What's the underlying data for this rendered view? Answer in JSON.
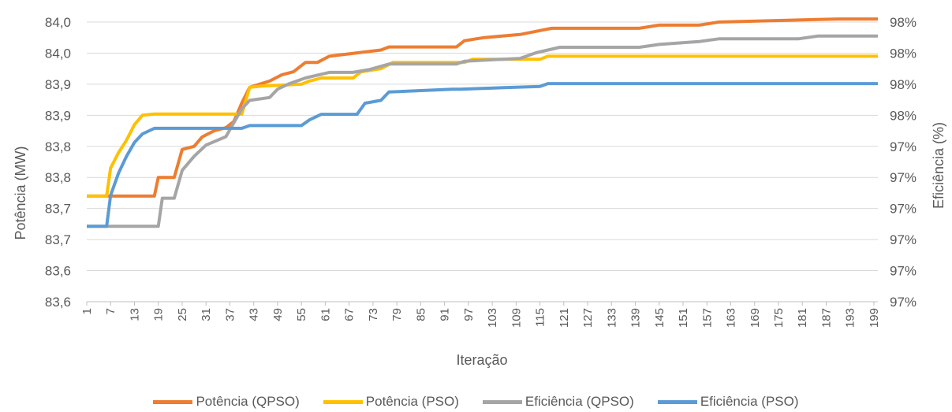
{
  "chart_data": {
    "type": "line",
    "title": "",
    "xlabel": "Iteração",
    "ylabel_left": "Potência (MW)",
    "ylabel_right": "Eficiência (%)",
    "x_tick_labels": [
      "1",
      "7",
      "13",
      "19",
      "25",
      "31",
      "37",
      "43",
      "49",
      "55",
      "61",
      "67",
      "73",
      "79",
      "85",
      "91",
      "97",
      "103",
      "109",
      "115",
      "121",
      "127",
      "133",
      "139",
      "145",
      "151",
      "157",
      "163",
      "169",
      "175",
      "181",
      "187",
      "193",
      "199"
    ],
    "y_left_tick_labels": [
      "84,0",
      "84,0",
      "83,9",
      "83,9",
      "83,8",
      "83,8",
      "83,7",
      "83,7",
      "83,6",
      "83,6"
    ],
    "y_right_tick_labels": [
      "98%",
      "98%",
      "98%",
      "98%",
      "97%",
      "97%",
      "97%",
      "97%",
      "97%",
      "97%"
    ],
    "y_left_lim": [
      83.55,
      84.0
    ],
    "y_right_lim": [
      97.0,
      98.0
    ],
    "grid": true,
    "legend_position": "bottom",
    "series": [
      {
        "name": "Potência (QPSO)",
        "color": "#ED7D31",
        "axis": "left",
        "points": [
          [
            1,
            83.72
          ],
          [
            18,
            83.72
          ],
          [
            19,
            83.75
          ],
          [
            23,
            83.75
          ],
          [
            25,
            83.795
          ],
          [
            28,
            83.8
          ],
          [
            30,
            83.815
          ],
          [
            33,
            83.825
          ],
          [
            36,
            83.83
          ],
          [
            38,
            83.84
          ],
          [
            40,
            83.87
          ],
          [
            42,
            83.895
          ],
          [
            47,
            83.905
          ],
          [
            50,
            83.915
          ],
          [
            53,
            83.92
          ],
          [
            56,
            83.935
          ],
          [
            59,
            83.935
          ],
          [
            62,
            83.945
          ],
          [
            75,
            83.955
          ],
          [
            77,
            83.96
          ],
          [
            94,
            83.96
          ],
          [
            96,
            83.97
          ],
          [
            101,
            83.975
          ],
          [
            110,
            83.98
          ],
          [
            114,
            83.985
          ],
          [
            118,
            83.99
          ],
          [
            140,
            83.99
          ],
          [
            145,
            83.995
          ],
          [
            155,
            83.995
          ],
          [
            160,
            84.0
          ],
          [
            190,
            84.005
          ],
          [
            200,
            84.005
          ]
        ]
      },
      {
        "name": "Potência (PSO)",
        "color": "#FFC000",
        "axis": "left",
        "points": [
          [
            1,
            83.72
          ],
          [
            6,
            83.72
          ],
          [
            7,
            83.765
          ],
          [
            9,
            83.79
          ],
          [
            11,
            83.81
          ],
          [
            13,
            83.835
          ],
          [
            15,
            83.85
          ],
          [
            18,
            83.852
          ],
          [
            20,
            83.852
          ],
          [
            40,
            83.852
          ],
          [
            42,
            83.895
          ],
          [
            45,
            83.897
          ],
          [
            55,
            83.9
          ],
          [
            57,
            83.905
          ],
          [
            60,
            83.91
          ],
          [
            68,
            83.91
          ],
          [
            70,
            83.92
          ],
          [
            75,
            83.925
          ],
          [
            78,
            83.935
          ],
          [
            96,
            83.935
          ],
          [
            98,
            83.94
          ],
          [
            115,
            83.94
          ],
          [
            117,
            83.945
          ],
          [
            200,
            83.945
          ]
        ]
      },
      {
        "name": "Eficiência (QPSO)",
        "color": "#A5A5A5",
        "axis": "right",
        "points": [
          [
            1,
            97.27
          ],
          [
            19,
            97.27
          ],
          [
            20,
            97.37
          ],
          [
            23,
            97.37
          ],
          [
            25,
            97.47
          ],
          [
            28,
            97.52
          ],
          [
            31,
            97.56
          ],
          [
            36,
            97.59
          ],
          [
            38,
            97.64
          ],
          [
            40,
            97.69
          ],
          [
            42,
            97.72
          ],
          [
            47,
            97.73
          ],
          [
            49,
            97.76
          ],
          [
            52,
            97.78
          ],
          [
            56,
            97.8
          ],
          [
            59,
            97.81
          ],
          [
            62,
            97.82
          ],
          [
            68,
            97.82
          ],
          [
            72,
            97.83
          ],
          [
            77,
            97.85
          ],
          [
            94,
            97.85
          ],
          [
            96,
            97.86
          ],
          [
            110,
            97.87
          ],
          [
            114,
            97.89
          ],
          [
            120,
            97.91
          ],
          [
            140,
            97.91
          ],
          [
            145,
            97.92
          ],
          [
            155,
            97.93
          ],
          [
            160,
            97.94
          ],
          [
            180,
            97.94
          ],
          [
            185,
            97.95
          ],
          [
            200,
            97.95
          ]
        ]
      },
      {
        "name": "Eficiência (PSO)",
        "color": "#5B9BD5",
        "axis": "right",
        "points": [
          [
            1,
            97.27
          ],
          [
            6,
            97.27
          ],
          [
            7,
            97.38
          ],
          [
            9,
            97.46
          ],
          [
            11,
            97.52
          ],
          [
            13,
            97.57
          ],
          [
            15,
            97.6
          ],
          [
            18,
            97.62
          ],
          [
            20,
            97.62
          ],
          [
            40,
            97.62
          ],
          [
            42,
            97.63
          ],
          [
            55,
            97.63
          ],
          [
            57,
            97.65
          ],
          [
            60,
            97.67
          ],
          [
            69,
            97.67
          ],
          [
            71,
            97.71
          ],
          [
            75,
            97.72
          ],
          [
            77,
            97.75
          ],
          [
            93,
            97.76
          ],
          [
            95,
            97.76
          ],
          [
            115,
            97.77
          ],
          [
            117,
            97.78
          ],
          [
            200,
            97.78
          ]
        ]
      }
    ]
  }
}
